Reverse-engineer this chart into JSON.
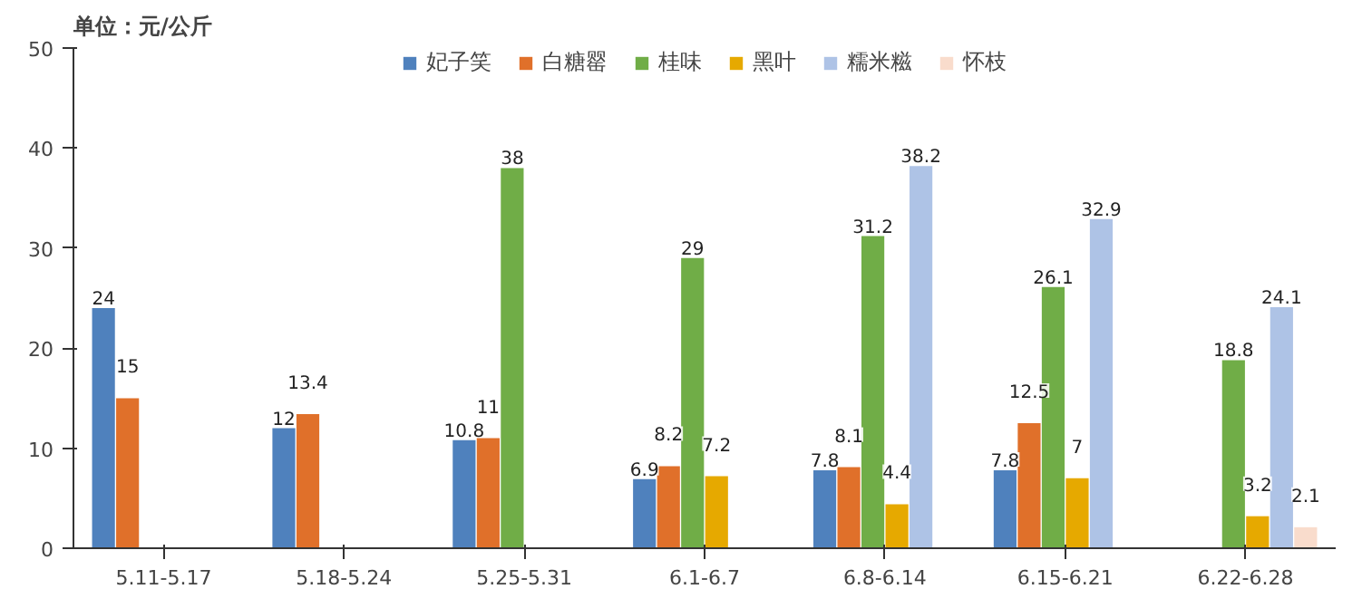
{
  "chart_data": {
    "type": "bar",
    "ylabel": "单位：元/公斤",
    "categories": [
      "5.11-5.17",
      "5.18-5.24",
      "5.25-5.31",
      "6.1-6.7",
      "6.8-6.14",
      "6.15-6.21",
      "6.22-6.28"
    ],
    "series": [
      {
        "name": "妃子笑",
        "color": "#4f81bd",
        "values": [
          24,
          12,
          10.8,
          6.9,
          7.8,
          7.8,
          null
        ]
      },
      {
        "name": "白糖罂",
        "color": "#e0702a",
        "values": [
          15,
          13.4,
          11,
          8.2,
          8.1,
          12.5,
          null
        ]
      },
      {
        "name": "桂味",
        "color": "#70ad47",
        "values": [
          null,
          null,
          38,
          29,
          31.2,
          26.1,
          18.8
        ]
      },
      {
        "name": "黑叶",
        "color": "#e6a900",
        "values": [
          null,
          null,
          null,
          7.2,
          4.4,
          7,
          3.2
        ]
      },
      {
        "name": "糯米糍",
        "color": "#aec3e6",
        "values": [
          null,
          null,
          null,
          null,
          38.2,
          32.9,
          24.1
        ]
      },
      {
        "name": "怀枝",
        "color": "#f9dccc",
        "values": [
          null,
          null,
          null,
          null,
          null,
          null,
          2.1
        ]
      }
    ],
    "ylim": [
      0,
      50
    ],
    "yticks": [
      0,
      10,
      20,
      30,
      40,
      50
    ],
    "grid": false,
    "legend": "top",
    "data_labels": true
  }
}
